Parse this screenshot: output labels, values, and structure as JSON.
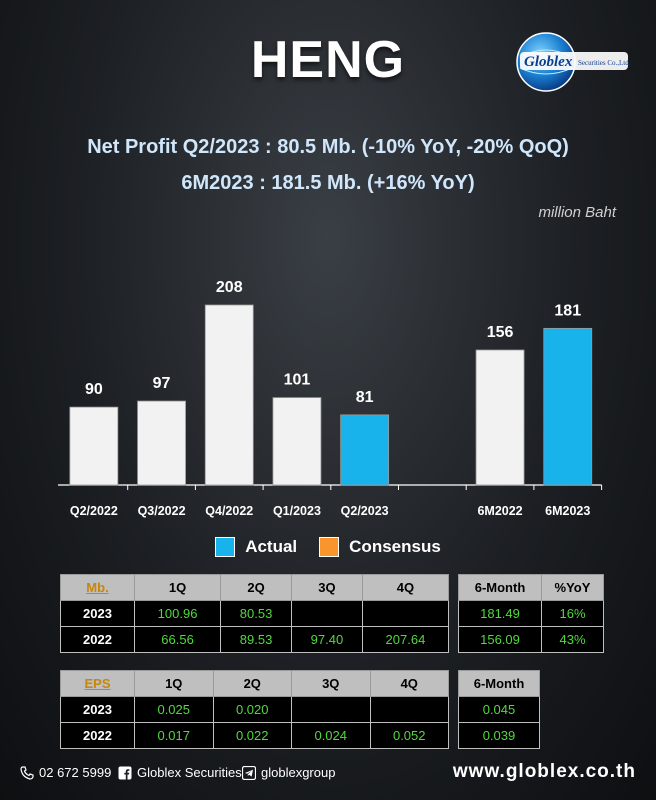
{
  "title": "HENG",
  "logo": {
    "brand": "Globlex",
    "suffix": "Securities Co.,Ltd."
  },
  "headline_1": "Net Profit  Q2/2023 : 80.5 Mb. (-10% YoY, -20% QoQ)",
  "headline_2": "6M2023 : 181.5 Mb. (+16% YoY)",
  "unit": "million Baht",
  "legend": {
    "actual": "Actual",
    "consensus": "Consensus"
  },
  "colors": {
    "actual": "#19b3ec",
    "history": "#f2f2f2",
    "consensus": "#f8952d"
  },
  "chart_data": {
    "type": "bar",
    "categories": [
      "Q2/2022",
      "Q3/2022",
      "Q4/2022",
      "Q1/2023",
      "Q2/2023",
      "",
      "6M2022",
      "6M2023"
    ],
    "values": [
      90,
      97,
      208,
      101,
      81,
      null,
      156,
      181
    ],
    "highlight": [
      false,
      false,
      false,
      false,
      true,
      false,
      false,
      true
    ],
    "legend_position": "bottom-center",
    "grid": false
  },
  "mb_table": {
    "corner": "Mb.",
    "headers": [
      "1Q",
      "2Q",
      "3Q",
      "4Q"
    ],
    "rows": [
      {
        "label": "2023",
        "values": [
          "100.96",
          "80.53",
          "",
          ""
        ]
      },
      {
        "label": "2022",
        "values": [
          "66.56",
          "89.53",
          "97.40",
          "207.64"
        ]
      }
    ]
  },
  "mb_summary": {
    "headers": [
      "6-Month",
      "%YoY"
    ],
    "rows": [
      [
        "181.49",
        "16%"
      ],
      [
        "156.09",
        "43%"
      ]
    ]
  },
  "eps_table": {
    "corner": "EPS",
    "headers": [
      "1Q",
      "2Q",
      "3Q",
      "4Q"
    ],
    "rows": [
      {
        "label": "2023",
        "values": [
          "0.025",
          "0.020",
          "",
          ""
        ]
      },
      {
        "label": "2022",
        "values": [
          "0.017",
          "0.022",
          "0.024",
          "0.052"
        ]
      }
    ]
  },
  "eps_summary": {
    "headers": [
      "6-Month"
    ],
    "rows": [
      [
        "0.045"
      ],
      [
        "0.039"
      ]
    ]
  },
  "footer": {
    "phone": "02 672 5999",
    "facebook": "Globlex Securities",
    "telegram": "globlexgroup",
    "website": "www.globlex.co.th"
  }
}
